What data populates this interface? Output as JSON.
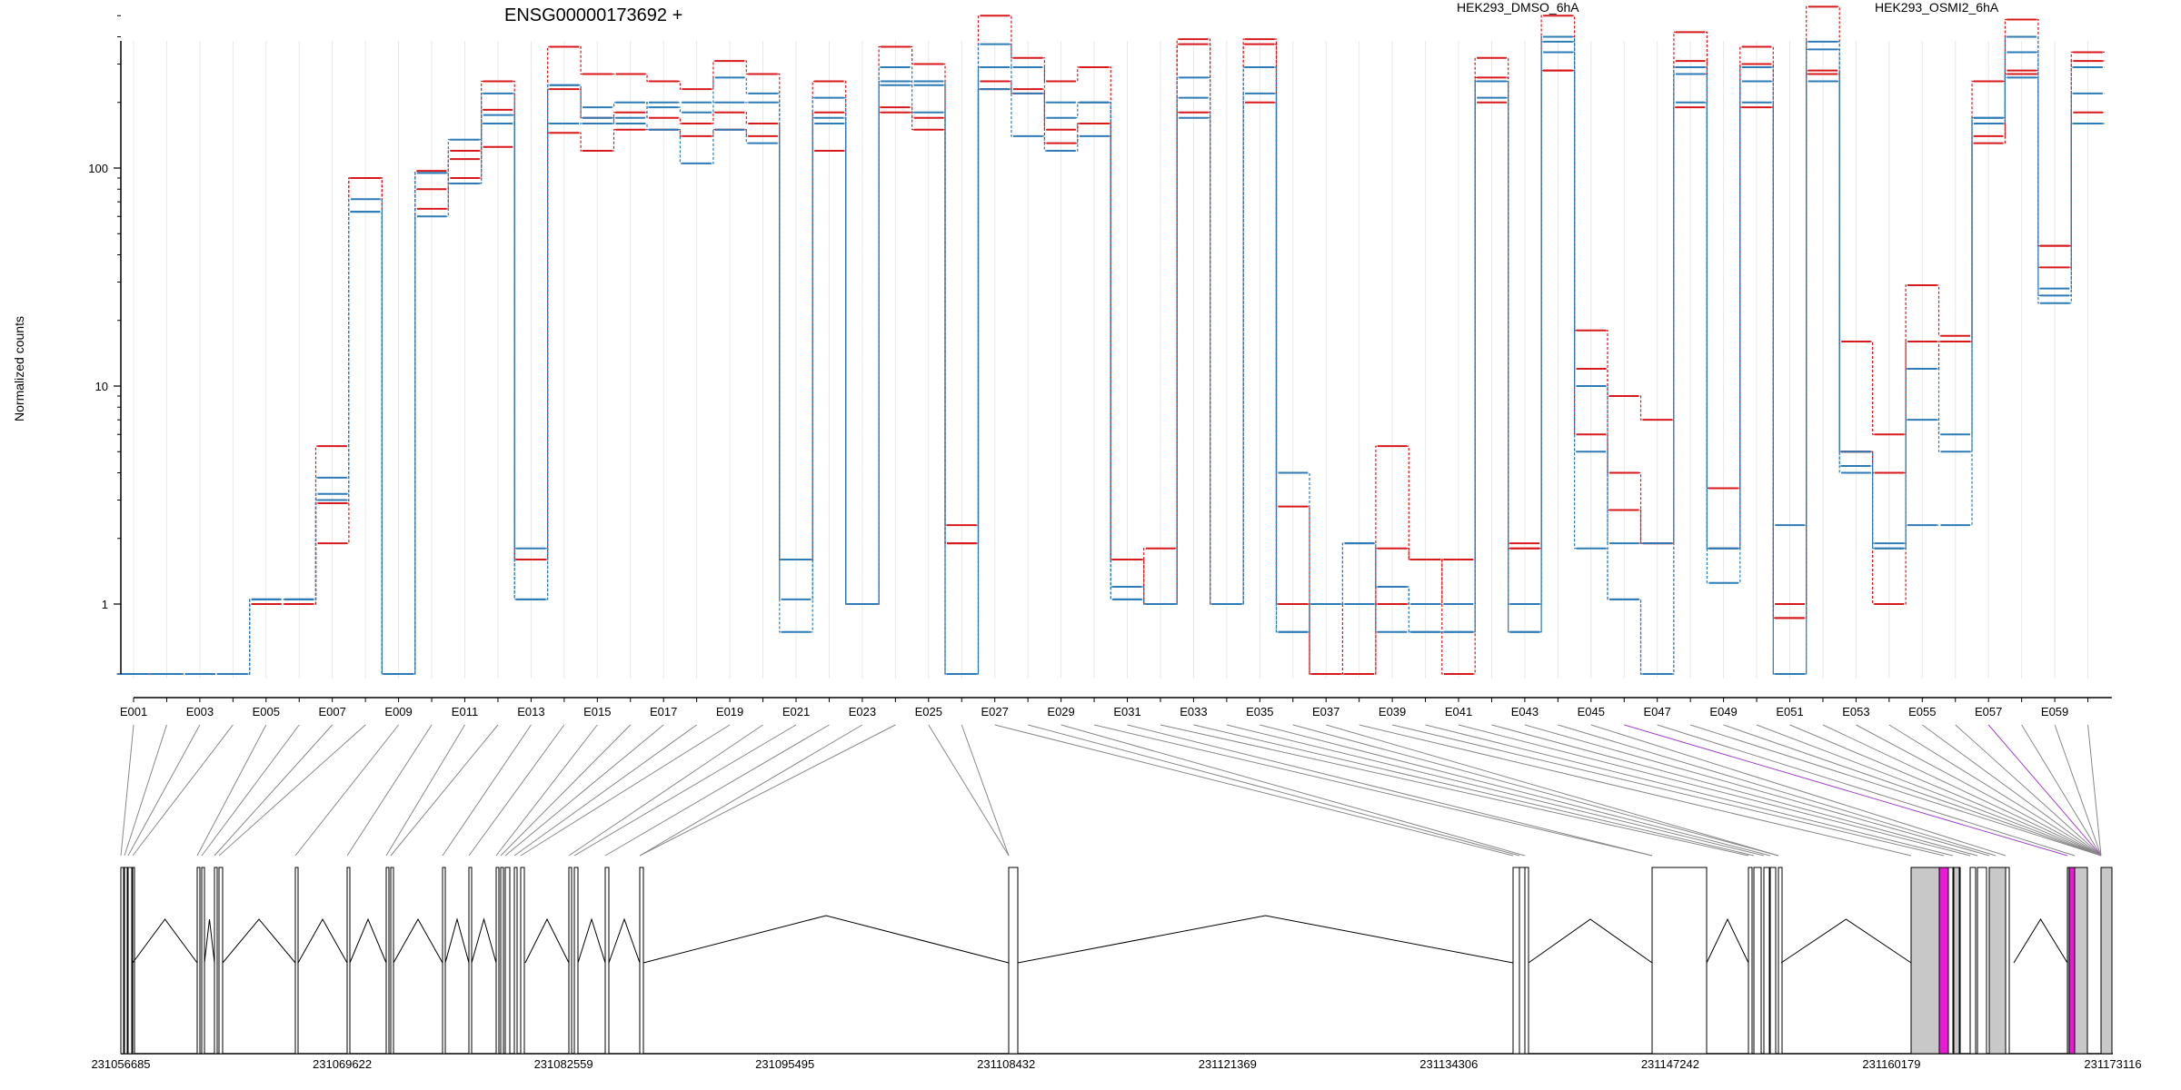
{
  "chart_data": {
    "type": "line",
    "title": "ENSG00000173692 +",
    "ylabel": "Normalized counts",
    "yscale": "log",
    "ylim": [
      0.5,
      650
    ],
    "yticks": [
      "1",
      "10",
      "100"
    ],
    "categories": [
      "E001",
      "E002",
      "E003",
      "E004",
      "E005",
      "E006",
      "E007",
      "E008",
      "E009",
      "E010",
      "E011",
      "E012",
      "E013",
      "E014",
      "E015",
      "E016",
      "E017",
      "E018",
      "E019",
      "E020",
      "E021",
      "E022",
      "E023",
      "E024",
      "E025",
      "E026",
      "E027",
      "E028",
      "E029",
      "E030",
      "E031",
      "E032",
      "E033",
      "E034",
      "E035",
      "E036",
      "E037",
      "E038",
      "E039",
      "E040",
      "E041",
      "E042",
      "E043",
      "E044",
      "E045",
      "E046",
      "E047",
      "E048",
      "E049",
      "E050",
      "E051",
      "E052",
      "E053",
      "E054",
      "E055",
      "E056",
      "E057",
      "E058",
      "E059",
      "E060"
    ],
    "xticklabels": [
      "E001",
      "E003",
      "E005",
      "E007",
      "E009",
      "E011",
      "E013",
      "E015",
      "E017",
      "E019",
      "E021",
      "E023",
      "E025",
      "E027",
      "E029",
      "E031",
      "E033",
      "E035",
      "E037",
      "E039",
      "E041",
      "E043",
      "E045",
      "E047",
      "E049",
      "E051",
      "E053",
      "E055",
      "E057",
      "E059"
    ],
    "grid": true,
    "groups": [
      {
        "name": "HEK293_DMSO_6hA",
        "color": "#d7191c"
      },
      {
        "name": "HEK293_OSMI2_6hA",
        "color": "#2c7bb6"
      }
    ],
    "series": [
      {
        "group": "HEK293_DMSO_6hA",
        "values": [
          0.5,
          0.5,
          0.5,
          0.5,
          1.0,
          1.0,
          1.9,
          90,
          0.5,
          97,
          120,
          250,
          1.6,
          360,
          270,
          270,
          250,
          230,
          310,
          270,
          1.6,
          250,
          1.0,
          360,
          300,
          2.3,
          500,
          320,
          250,
          290,
          1.6,
          1.8,
          390,
          1.0,
          390,
          2.8,
          0.5,
          0.5,
          5.3,
          1.6,
          1.6,
          320,
          1.8,
          500,
          18,
          9,
          7,
          420,
          1.8,
          360,
          1.0,
          550,
          16,
          6,
          29,
          17,
          250,
          480,
          44,
          340
        ]
      },
      {
        "group": "HEK293_DMSO_6hA",
        "values": [
          0.5,
          0.5,
          0.5,
          0.5,
          1.0,
          1.0,
          2.9,
          90,
          0.5,
          80,
          110,
          185,
          1.6,
          230,
          170,
          180,
          170,
          160,
          180,
          160,
          1.6,
          180,
          1.0,
          190,
          170,
          1.9,
          250,
          230,
          150,
          160,
          1.6,
          1.0,
          180,
          1.0,
          200,
          1.0,
          0.5,
          1.0,
          1.8,
          1.6,
          0.5,
          260,
          1.9,
          280,
          6,
          4,
          1.9,
          310,
          3.4,
          300,
          0.9,
          280,
          5,
          1.0,
          12,
          16,
          140,
          280,
          35,
          180
        ]
      },
      {
        "group": "HEK293_DMSO_6hA",
        "values": [
          0.5,
          0.5,
          0.5,
          0.5,
          1.0,
          1.0,
          5.3,
          90,
          0.5,
          65,
          90,
          125,
          1.6,
          145,
          120,
          150,
          150,
          140,
          150,
          140,
          1.6,
          120,
          1.0,
          180,
          150,
          1.9,
          230,
          220,
          130,
          160,
          1.6,
          1.0,
          370,
          1.0,
          370,
          1.0,
          0.5,
          0.5,
          1.0,
          1.0,
          1.6,
          200,
          1.8,
          280,
          12,
          2.7,
          1.9,
          190,
          3.4,
          190,
          0.9,
          270,
          5,
          4,
          16,
          16,
          130,
          270,
          44,
          310
        ]
      },
      {
        "group": "HEK293_OSMI2_6hA",
        "values": [
          0.5,
          0.5,
          0.5,
          0.5,
          1.05,
          1.05,
          3.0,
          72,
          0.5,
          60,
          85,
          220,
          1.05,
          240,
          190,
          200,
          190,
          180,
          260,
          220,
          0.8,
          210,
          1.0,
          250,
          250,
          0.5,
          370,
          290,
          200,
          200,
          1.2,
          1.0,
          260,
          1.0,
          290,
          4.0,
          1.0,
          1.9,
          1.2,
          1.0,
          1.0,
          210,
          1.0,
          400,
          10,
          1.9,
          1.9,
          270,
          1.8,
          290,
          2.3,
          380,
          4.3,
          1.9,
          12,
          6,
          170,
          340,
          28,
          290
        ]
      },
      {
        "group": "HEK293_OSMI2_6hA",
        "values": [
          0.5,
          0.5,
          0.5,
          0.5,
          1.05,
          1.05,
          3.8,
          63,
          0.5,
          95,
          135,
          160,
          1.05,
          240,
          170,
          160,
          150,
          105,
          150,
          130,
          1.05,
          170,
          1.0,
          290,
          180,
          0.5,
          290,
          140,
          120,
          140,
          1.05,
          1.0,
          210,
          1.0,
          290,
          0.8,
          1.0,
          1.0,
          0.8,
          0.8,
          0.8,
          250,
          0.8,
          340,
          5,
          1.05,
          0.5,
          290,
          1.8,
          250,
          0.5,
          350,
          4.0,
          1.8,
          7,
          5,
          170,
          260,
          24,
          160
        ]
      },
      {
        "group": "HEK293_OSMI2_6hA",
        "values": [
          0.5,
          0.5,
          0.5,
          0.5,
          1.05,
          1.05,
          3.2,
          63,
          0.5,
          95,
          85,
          175,
          1.8,
          160,
          160,
          170,
          200,
          200,
          200,
          200,
          1.6,
          160,
          1.0,
          240,
          240,
          0.5,
          230,
          220,
          170,
          200,
          1.05,
          1.0,
          170,
          1.0,
          220,
          0.8,
          1.0,
          1.9,
          1.2,
          0.8,
          0.8,
          250,
          0.8,
          380,
          1.8,
          1.05,
          0.5,
          200,
          1.25,
          200,
          0.5,
          250,
          5,
          1.8,
          2.3,
          2.3,
          160,
          400,
          26,
          220
        ]
      }
    ],
    "genomic_ticks": [
      "231056685",
      "231069622",
      "231082559",
      "231095495",
      "231108432",
      "231121369",
      "231134306",
      "231147242",
      "231160179",
      "231173116"
    ]
  }
}
